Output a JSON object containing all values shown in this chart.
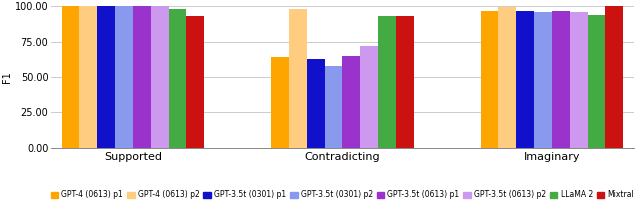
{
  "groups": [
    "Supported",
    "Contradicting",
    "Imaginary"
  ],
  "series_labels": [
    "GPT-4 (0613) p1",
    "GPT-4 (0613) p2",
    "GPT-3.5t (0301) p1",
    "GPT-3.5t (0301) p2",
    "GPT-3.5t (0613) p1",
    "GPT-3.5t (0613) p2",
    "LLaMA 2",
    "Mixtral"
  ],
  "colors": [
    "#FFA500",
    "#FFCC80",
    "#1111CC",
    "#8899EE",
    "#9933CC",
    "#CC99EE",
    "#44AA44",
    "#CC1111"
  ],
  "values": {
    "Supported": [
      100.0,
      100.0,
      100.0,
      100.0,
      100.0,
      100.0,
      98.0,
      93.0
    ],
    "Contradicting": [
      64.0,
      98.0,
      63.0,
      58.0,
      65.0,
      72.0,
      93.0,
      93.5
    ],
    "Imaginary": [
      97.0,
      99.5,
      97.0,
      96.0,
      96.5,
      96.0,
      94.0,
      100.0
    ]
  },
  "ylabel": "F1",
  "ylim": [
    0,
    100
  ],
  "yticks": [
    0.0,
    25.0,
    50.0,
    75.0,
    100.0
  ],
  "background_color": "#ffffff",
  "grid_color": "#cccccc",
  "bar_width": 0.085,
  "group_centers": [
    0,
    1.0,
    2.0
  ],
  "figsize": [
    6.4,
    2.11
  ],
  "dpi": 100
}
